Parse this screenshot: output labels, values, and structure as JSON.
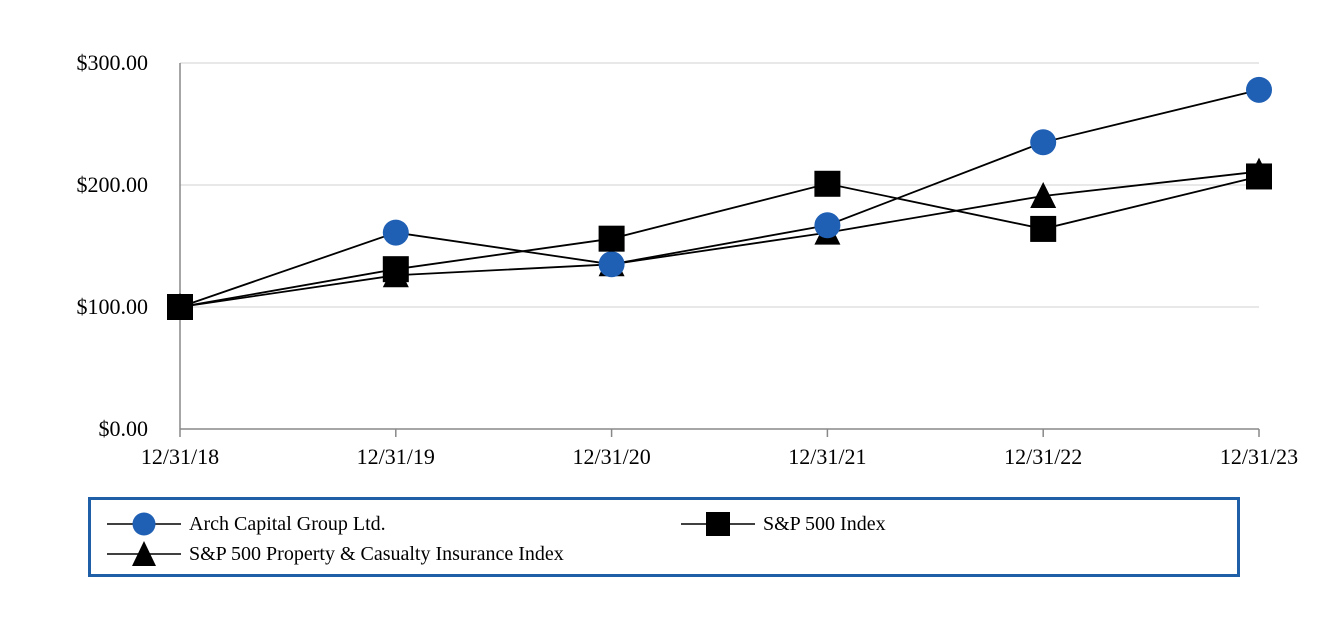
{
  "chart_data": {
    "type": "line",
    "x": [
      "12/31/18",
      "12/31/19",
      "12/31/20",
      "12/31/21",
      "12/31/22",
      "12/31/23"
    ],
    "y_ticks": [
      "$0.00",
      "$100.00",
      "$200.00",
      "$300.00"
    ],
    "ylim": [
      0,
      300
    ],
    "grid": true,
    "legend_position": "bottom",
    "series": [
      {
        "name": "Arch Capital Group Ltd.",
        "marker": "circle",
        "color": "#1f5fb4",
        "values": [
          100,
          161,
          135,
          167,
          235,
          278
        ]
      },
      {
        "name": "S&P 500 Index",
        "marker": "square",
        "color": "#000000",
        "values": [
          100,
          131,
          156,
          201,
          164,
          207
        ]
      },
      {
        "name": "S&P 500 Property & Casualty Insurance Index",
        "marker": "triangle",
        "color": "#000000",
        "values": [
          100,
          126,
          135,
          161,
          191,
          211
        ]
      }
    ]
  }
}
